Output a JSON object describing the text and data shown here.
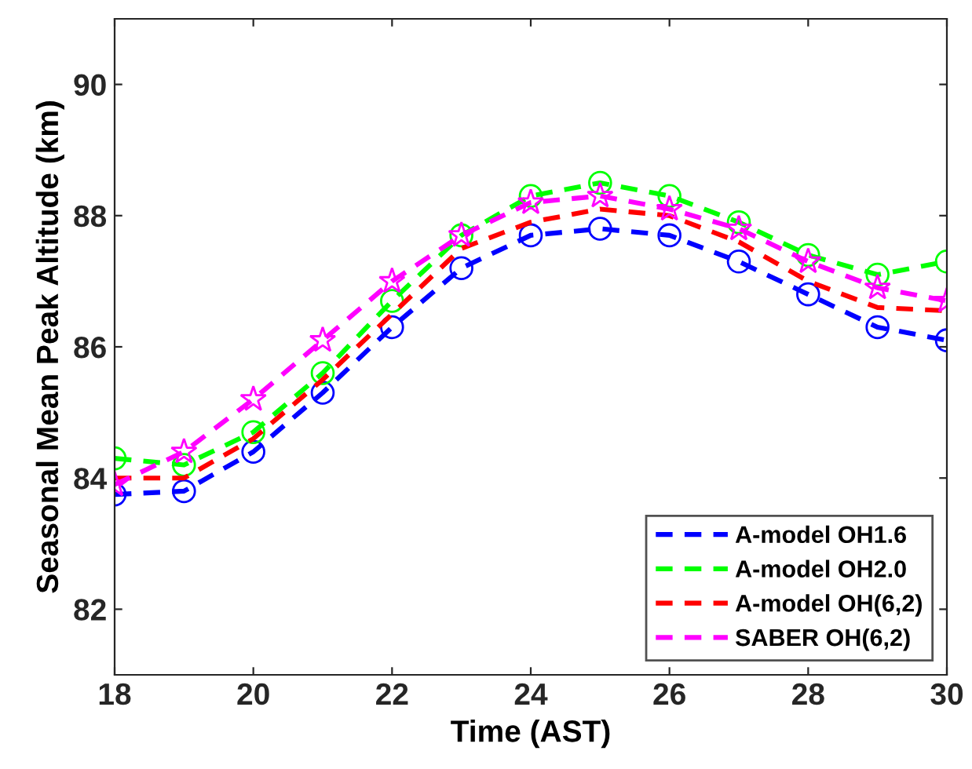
{
  "chart_data": {
    "type": "line",
    "xlabel": "Time (AST)",
    "ylabel": "Seasonal Mean Peak Altitude (km)",
    "x": [
      18,
      19,
      20,
      21,
      22,
      23,
      24,
      25,
      26,
      27,
      28,
      29,
      30
    ],
    "xlim": [
      18,
      30
    ],
    "xticks": [
      18,
      20,
      22,
      24,
      26,
      28,
      30
    ],
    "ylim": [
      81,
      91
    ],
    "yticks": [
      82,
      84,
      86,
      88,
      90
    ],
    "grid": false,
    "legend": "bottom right",
    "line_style": "dashed",
    "series": [
      {
        "name": "A-model OH1.6",
        "color": "#0000ff",
        "marker": "circle",
        "values": [
          83.75,
          83.8,
          84.4,
          85.3,
          86.3,
          87.2,
          87.7,
          87.8,
          87.7,
          87.3,
          86.8,
          86.3,
          86.1
        ]
      },
      {
        "name": "A-model OH2.0",
        "color": "#00ff00",
        "marker": "circle",
        "values": [
          84.3,
          84.2,
          84.7,
          85.6,
          86.7,
          87.7,
          88.3,
          88.5,
          88.3,
          87.9,
          87.4,
          87.1,
          87.3
        ]
      },
      {
        "name": "A-model OH(6,2)",
        "color": "#ff0000",
        "marker": "none",
        "values": [
          84.0,
          84.0,
          84.6,
          85.5,
          86.5,
          87.5,
          87.9,
          88.1,
          88.0,
          87.6,
          87.0,
          86.6,
          86.55
        ]
      },
      {
        "name": "SABER OH(6,2)",
        "color": "#ff00ff",
        "marker": "star",
        "values": [
          83.9,
          84.4,
          85.2,
          86.1,
          87.0,
          87.7,
          88.2,
          88.3,
          88.1,
          87.8,
          87.3,
          86.9,
          86.7
        ]
      }
    ]
  }
}
